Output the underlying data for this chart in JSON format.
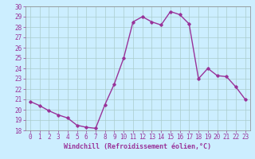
{
  "hours": [
    0,
    1,
    2,
    3,
    4,
    5,
    6,
    7,
    8,
    9,
    10,
    11,
    12,
    13,
    14,
    15,
    16,
    17,
    18,
    19,
    20,
    21,
    22,
    23
  ],
  "values": [
    20.8,
    20.4,
    19.9,
    19.5,
    19.2,
    18.5,
    18.3,
    18.2,
    20.5,
    22.5,
    25.0,
    28.5,
    29.0,
    28.5,
    28.2,
    29.5,
    29.2,
    28.3,
    23.0,
    24.0,
    23.3,
    23.2,
    22.2,
    21.0
  ],
  "xlim": [
    -0.5,
    23.5
  ],
  "ylim": [
    18,
    30
  ],
  "yticks": [
    18,
    19,
    20,
    21,
    22,
    23,
    24,
    25,
    26,
    27,
    28,
    29,
    30
  ],
  "xticks": [
    0,
    1,
    2,
    3,
    4,
    5,
    6,
    7,
    8,
    9,
    10,
    11,
    12,
    13,
    14,
    15,
    16,
    17,
    18,
    19,
    20,
    21,
    22,
    23
  ],
  "xlabel": "Windchill (Refroidissement éolien,°C)",
  "line_color": "#993399",
  "marker": "D",
  "marker_size": 1.8,
  "bg_color": "#cceeff",
  "grid_color": "#aacccc",
  "tick_color": "#993399",
  "label_color": "#993399",
  "line_width": 1.0
}
